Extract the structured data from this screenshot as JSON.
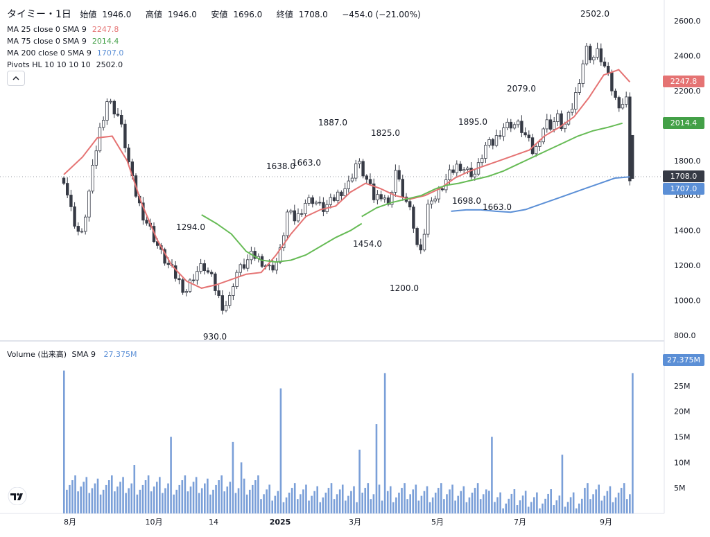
{
  "header": {
    "symbol": "タイミー・1日",
    "open_label": "始値",
    "open": "1946.0",
    "high_label": "高値",
    "high": "1946.0",
    "low_label": "安値",
    "low": "1696.0",
    "close_label": "終値",
    "close": "1708.0",
    "change": "−454.0 (−21.00%)"
  },
  "indicators": [
    {
      "label": "MA 25 close 0 SMA 9",
      "value": "2247.8",
      "color": "#e57373"
    },
    {
      "label": "MA 75 close 0 SMA 9",
      "value": "2014.4",
      "color": "#66bb55"
    },
    {
      "label": "MA 200 close 0 SMA 9",
      "value": "1707.0",
      "color": "#5b8fd6"
    },
    {
      "label": "Pivots HL 10 10 10 10",
      "value": "2502.0",
      "color": "#131722"
    }
  ],
  "volume_header": {
    "label": "Volume (出来高)",
    "sma": "SMA 9",
    "value": "27.375M",
    "color": "#5b8fd6"
  },
  "price_tags": [
    {
      "value": "2247.8",
      "color": "#e57373"
    },
    {
      "value": "2014.4",
      "color": "#43a047"
    },
    {
      "value": "1708.0",
      "color": "#363a45"
    },
    {
      "value": "1707.0",
      "color": "#5b8fd6"
    }
  ],
  "volume_tag": {
    "value": "27.375M",
    "color": "#5b8fd6"
  },
  "chart_data": {
    "type": "candlestick",
    "price_axis": {
      "ticks": [
        "2600.0",
        "2400.0",
        "2200.0",
        "2000.0",
        "1800.0",
        "1600.0",
        "1400.0",
        "1200.0",
        "1000.0",
        "800.0"
      ],
      "range": [
        790,
        2640
      ]
    },
    "volume_axis": {
      "ticks": [
        "30M",
        "25M",
        "20M",
        "15M",
        "10M",
        "5M"
      ],
      "range": [
        0,
        30
      ]
    },
    "x_ticks": [
      "8月",
      "10月",
      "14",
      "2025",
      "3月",
      "5月",
      "7月",
      "9月"
    ],
    "pivot_labels": [
      "2502.0",
      "2079.0",
      "1895.0",
      "1887.0",
      "1825.0",
      "1663.0",
      "1638.0",
      "1294.0",
      "1698.0",
      "1663.0",
      "1454.0",
      "1200.0",
      "930.0"
    ],
    "series": [
      {
        "name": "MA 25 close 0 SMA 9",
        "color": "#e57373",
        "points": [
          [
            0,
            1720
          ],
          [
            5,
            1820
          ],
          [
            9,
            1930
          ],
          [
            13,
            1940
          ],
          [
            17,
            1800
          ],
          [
            21,
            1550
          ],
          [
            25,
            1350
          ],
          [
            29,
            1200
          ],
          [
            33,
            1110
          ],
          [
            37,
            1070
          ],
          [
            41,
            1090
          ],
          [
            45,
            1120
          ],
          [
            49,
            1150
          ],
          [
            53,
            1160
          ],
          [
            57,
            1260
          ],
          [
            61,
            1380
          ],
          [
            65,
            1480
          ],
          [
            69,
            1520
          ],
          [
            73,
            1540
          ],
          [
            77,
            1620
          ],
          [
            81,
            1670
          ],
          [
            85,
            1640
          ],
          [
            89,
            1600
          ],
          [
            93,
            1580
          ],
          [
            97,
            1600
          ],
          [
            101,
            1640
          ],
          [
            105,
            1700
          ],
          [
            109,
            1740
          ],
          [
            113,
            1770
          ],
          [
            117,
            1800
          ],
          [
            121,
            1830
          ],
          [
            125,
            1860
          ],
          [
            129,
            1940
          ],
          [
            133,
            1990
          ],
          [
            137,
            2050
          ],
          [
            141,
            2160
          ],
          [
            145,
            2290
          ],
          [
            149,
            2320
          ],
          [
            152,
            2250
          ]
        ]
      },
      {
        "name": "MA 75 close 0 SMA 9",
        "color": "#66bb55",
        "points": [
          [
            37,
            1490
          ],
          [
            41,
            1440
          ],
          [
            45,
            1380
          ],
          [
            49,
            1280
          ],
          [
            53,
            1230
          ],
          [
            57,
            1220
          ],
          [
            61,
            1230
          ],
          [
            65,
            1260
          ],
          [
            69,
            1310
          ],
          [
            73,
            1360
          ],
          [
            77,
            1400
          ],
          [
            80,
            1440
          ]
        ]
      },
      {
        "name": "MA 75 close 0 SMA 9 (cont.)",
        "color": "#66bb55",
        "points": [
          [
            80,
            1480
          ],
          [
            84,
            1530
          ],
          [
            88,
            1560
          ],
          [
            92,
            1580
          ],
          [
            96,
            1600
          ],
          [
            100,
            1640
          ],
          [
            103,
            1660
          ],
          [
            106,
            1670
          ],
          [
            110,
            1690
          ],
          [
            114,
            1710
          ],
          [
            118,
            1740
          ],
          [
            122,
            1780
          ],
          [
            126,
            1820
          ],
          [
            130,
            1860
          ],
          [
            134,
            1900
          ],
          [
            138,
            1940
          ],
          [
            142,
            1970
          ],
          [
            146,
            1990
          ],
          [
            150,
            2014
          ]
        ]
      },
      {
        "name": "MA 200 close 0 SMA 9",
        "color": "#5b8fd6",
        "points": [
          [
            104,
            1510
          ],
          [
            108,
            1518
          ],
          [
            112,
            1518
          ],
          [
            116,
            1510
          ],
          [
            120,
            1505
          ],
          [
            124,
            1520
          ],
          [
            128,
            1550
          ],
          [
            132,
            1580
          ],
          [
            136,
            1610
          ],
          [
            140,
            1640
          ],
          [
            144,
            1670
          ],
          [
            148,
            1700
          ],
          [
            152,
            1707
          ]
        ]
      }
    ]
  }
}
